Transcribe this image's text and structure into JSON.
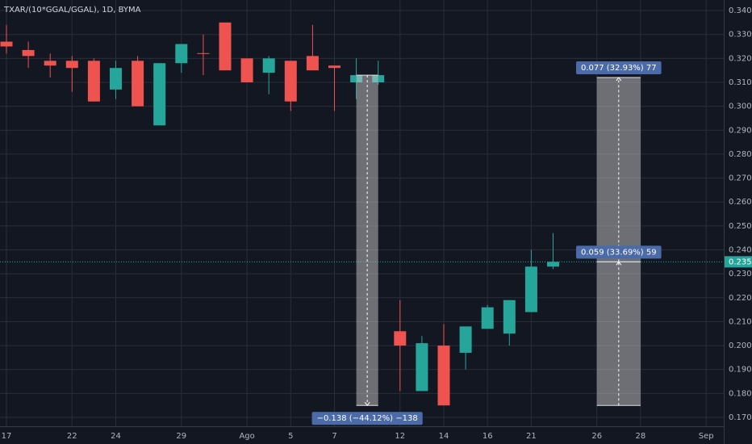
{
  "chart_data": {
    "type": "candlestick",
    "title": "TXAR/(10*GGAL/GGAL), 1D, BYMA",
    "categories": [
      "17",
      null,
      null,
      "22",
      null,
      "24",
      null,
      null,
      "29",
      null,
      null,
      "Ago",
      null,
      "5",
      null,
      "7",
      null,
      null,
      "12",
      null,
      "14",
      null,
      "16",
      null,
      "21",
      null,
      null,
      "26",
      null,
      "28",
      null,
      null,
      "Sep",
      null
    ],
    "open": [
      0.327,
      0.3235,
      0.319,
      0.319,
      0.319,
      0.307,
      0.319,
      0.292,
      0.318,
      0.3222,
      0.335,
      0.32,
      0.314,
      0.319,
      0.321,
      0.317,
      0.31,
      0.31,
      0.206,
      0.181,
      0.2,
      0.197,
      0.207,
      0.205,
      0.214,
      0.233,
      null,
      null,
      null,
      null,
      null,
      null,
      null,
      null
    ],
    "high": [
      0.334,
      0.327,
      0.322,
      0.321,
      0.32,
      0.319,
      0.321,
      0.318,
      0.326,
      0.33,
      0.335,
      0.32,
      0.321,
      0.319,
      0.334,
      0.317,
      0.32,
      0.319,
      0.219,
      0.204,
      0.209,
      0.208,
      0.217,
      0.219,
      0.24,
      0.247,
      null,
      null,
      null,
      null,
      null,
      null,
      null,
      null
    ],
    "low": [
      0.322,
      0.316,
      0.312,
      0.306,
      0.302,
      0.303,
      0.3,
      0.292,
      0.314,
      0.313,
      0.315,
      0.31,
      0.305,
      0.298,
      0.315,
      0.298,
      0.303,
      0.309,
      0.181,
      0.181,
      0.175,
      0.19,
      0.207,
      0.2,
      0.214,
      0.232,
      null,
      null,
      null,
      null,
      null,
      null,
      null,
      null
    ],
    "close": [
      0.325,
      0.321,
      0.317,
      0.316,
      0.302,
      0.316,
      0.3,
      0.318,
      0.326,
      0.322,
      0.315,
      0.31,
      0.32,
      0.302,
      0.315,
      0.316,
      0.313,
      0.313,
      0.2,
      0.201,
      0.175,
      0.208,
      0.216,
      0.219,
      0.233,
      0.235,
      null,
      null,
      null,
      null,
      null,
      null,
      null,
      null
    ],
    "up_color": "#26a69a",
    "down_color": "#ef5350",
    "ylim": [
      0.1663,
      0.3444
    ],
    "yticks": [
      {
        "value": 0.17,
        "label": "0.170"
      },
      {
        "value": 0.18,
        "label": "0.180"
      },
      {
        "value": 0.19,
        "label": "0.190"
      },
      {
        "value": 0.2,
        "label": "0.200"
      },
      {
        "value": 0.21,
        "label": "0.210"
      },
      {
        "value": 0.22,
        "label": "0.220"
      },
      {
        "value": 0.23,
        "label": "0.230"
      },
      {
        "value": 0.24,
        "label": "0.240"
      },
      {
        "value": 0.25,
        "label": "0.250"
      },
      {
        "value": 0.26,
        "label": "0.260"
      },
      {
        "value": 0.27,
        "label": "0.270"
      },
      {
        "value": 0.28,
        "label": "0.280"
      },
      {
        "value": 0.29,
        "label": "0.290"
      },
      {
        "value": 0.3,
        "label": "0.300"
      },
      {
        "value": 0.31,
        "label": "0.310"
      },
      {
        "value": 0.32,
        "label": "0.320"
      },
      {
        "value": 0.33,
        "label": "0.330"
      },
      {
        "value": 0.34,
        "label": "0.340"
      }
    ],
    "grid": true,
    "last": {
      "value": 0.235,
      "label": "0.235"
    },
    "annotations": [
      {
        "from": 0.313,
        "to": 0.175,
        "x_from": 16,
        "x_to": 17,
        "text": "−0.138 (−44.12%) −138",
        "label_side": "bottom"
      },
      {
        "from": 0.235,
        "to": 0.312,
        "x_from": 27,
        "x_to": 29,
        "text": "0.077 (32.93%) 77",
        "label_side": "top"
      },
      {
        "from": 0.175,
        "to": 0.235,
        "x_from": 27,
        "x_to": 29,
        "text": "0.059 (33.69%) 59",
        "label_side": "top"
      }
    ]
  }
}
